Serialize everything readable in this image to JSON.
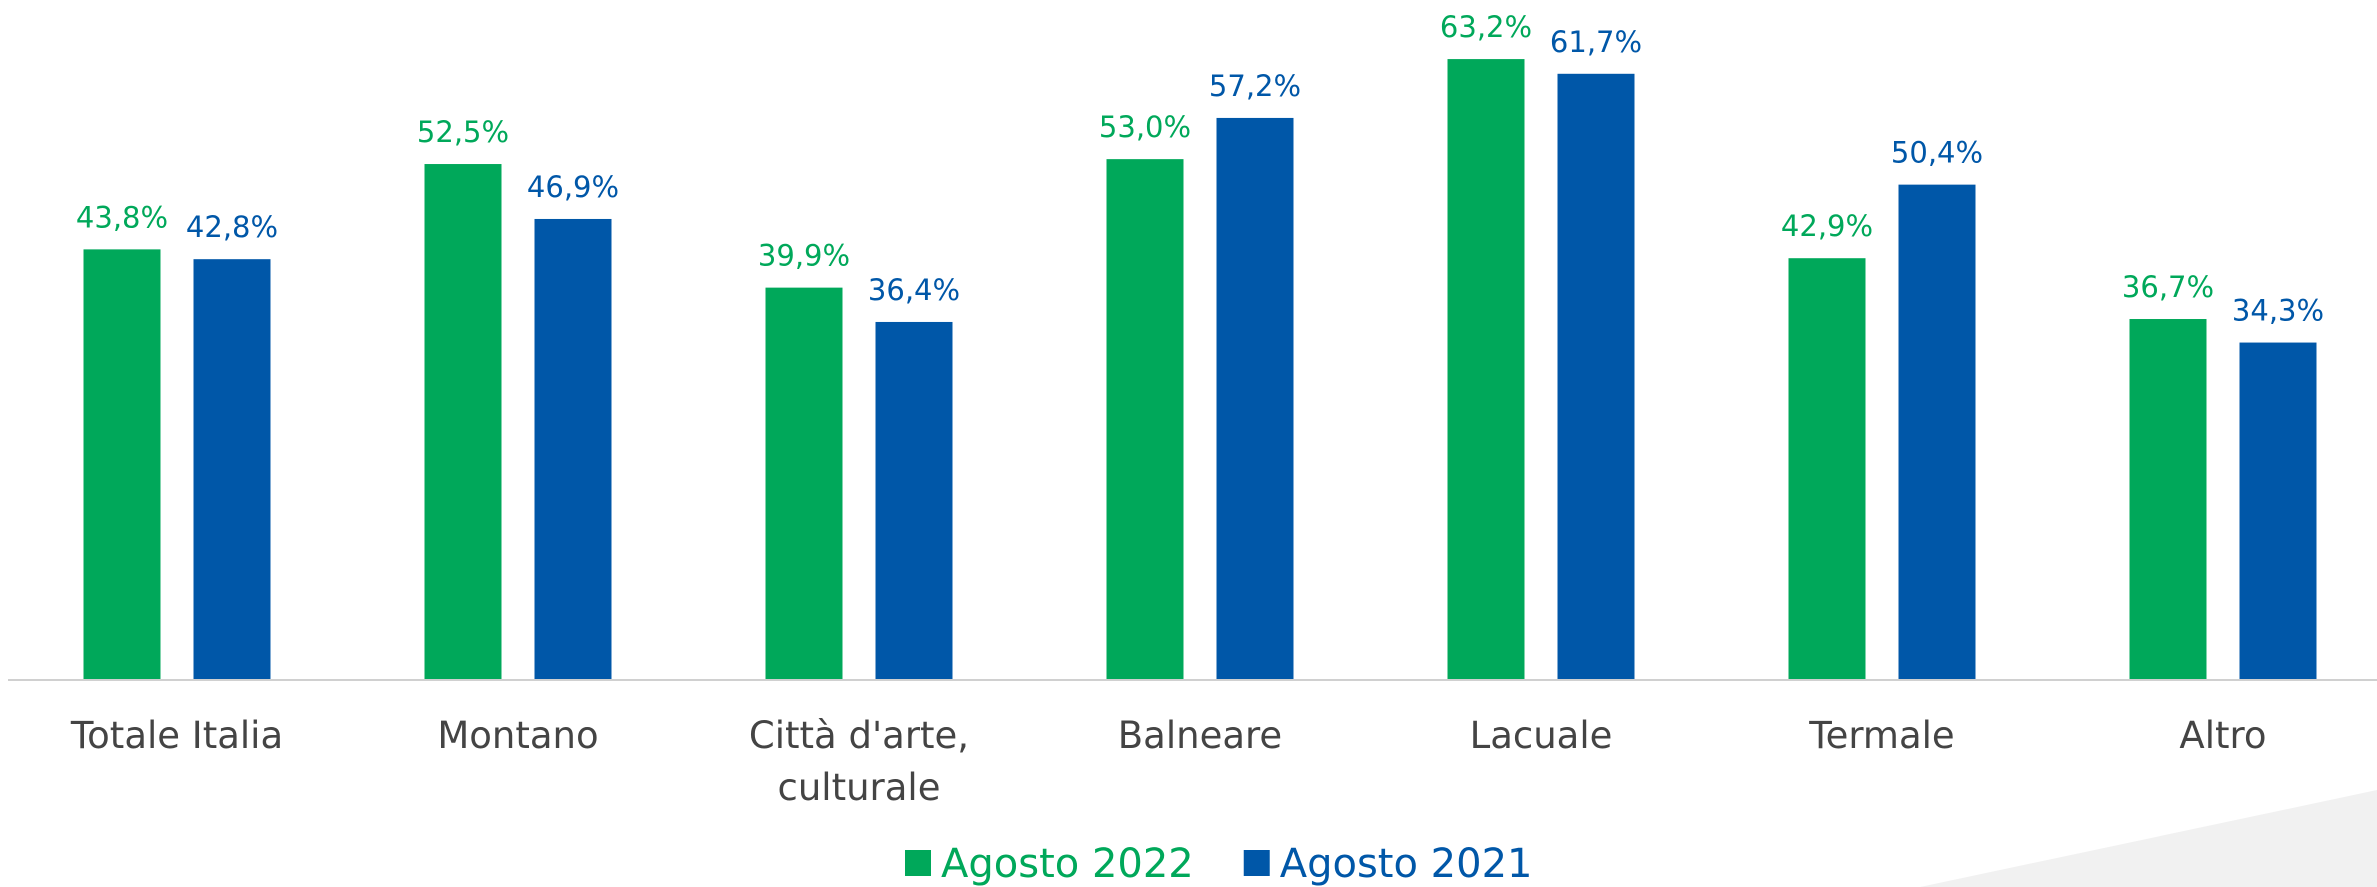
{
  "chart_data": {
    "type": "bar",
    "categories": [
      "Totale Italia",
      "Montano",
      "Città d'arte, culturale",
      "Balneare",
      "Lacuale",
      "Termale",
      "Altro"
    ],
    "series": [
      {
        "name": "Agosto 2022",
        "color": "#00a85a",
        "values": [
          43.8,
          52.5,
          39.9,
          53.0,
          63.2,
          42.9,
          36.7
        ],
        "value_labels": [
          "43,8%",
          "52,5%",
          "39,9%",
          "53,0%",
          "63,2%",
          "42,9%",
          "36,7%"
        ]
      },
      {
        "name": "Agosto 2021",
        "color": "#0057a8",
        "values": [
          42.8,
          46.9,
          36.4,
          57.2,
          61.7,
          50.4,
          34.3
        ],
        "value_labels": [
          "42,8%",
          "46,9%",
          "36,4%",
          "57,2%",
          "61,7%",
          "50,4%",
          "34,3%"
        ]
      }
    ],
    "ylim": [
      0,
      68
    ],
    "legend": "bottom"
  }
}
